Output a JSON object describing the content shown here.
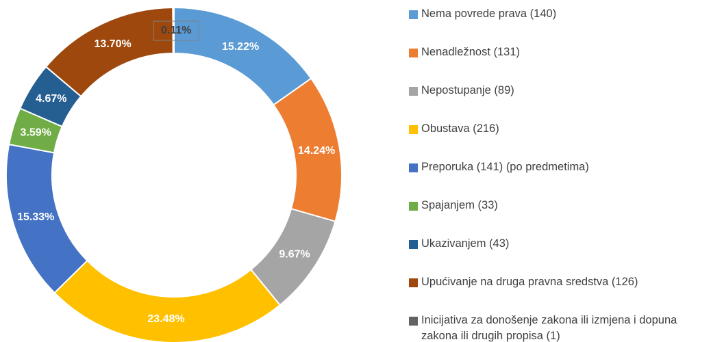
{
  "chart_data": {
    "type": "donut",
    "categories": [
      "Nema povrede prava (140)",
      "Nenadležnost (131)",
      "Nepostupanje (89)",
      "Obustava (216)",
      "Preporuka (141) (po predmetima)",
      "Spajanjem (33)",
      "Ukazivanjem (43)",
      "Upućivanje na druga pravna sredstva  (126)",
      "Inicijativa za donošenje zakona ili izmjena i dopuna zakona ili drugih propisa (1)"
    ],
    "values": [
      15.22,
      14.24,
      9.67,
      23.48,
      15.33,
      3.59,
      4.67,
      13.7,
      0.11
    ],
    "value_labels": [
      "15.22%",
      "14.24%",
      "9.67%",
      "23.48%",
      "15.33%",
      "3.59%",
      "4.67%",
      "13.70%",
      "0.11%"
    ],
    "colors": [
      "#5B9BD5",
      "#ED7D31",
      "#A5A5A5",
      "#FFC000",
      "#4472C4",
      "#70AD47",
      "#255E91",
      "#9E480E",
      "#636363"
    ],
    "legend": "right"
  }
}
